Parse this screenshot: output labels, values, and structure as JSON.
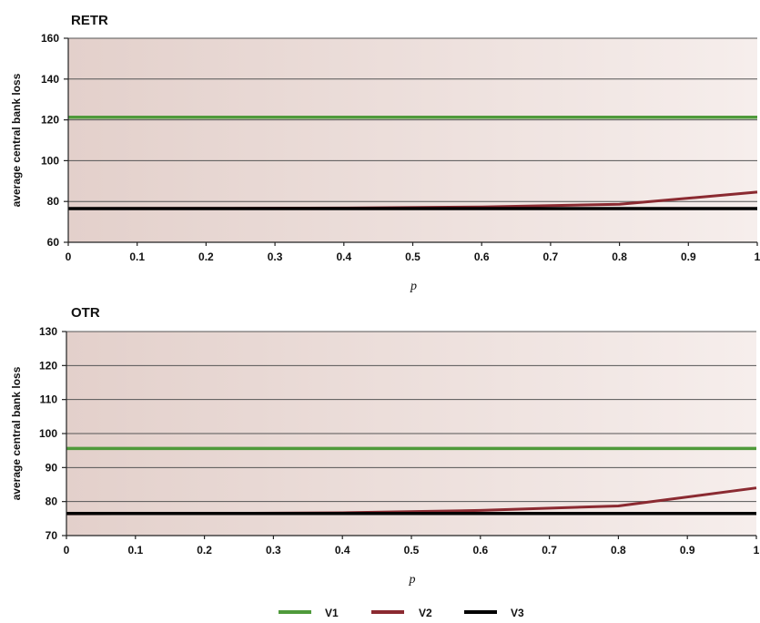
{
  "colors": {
    "V1": "#4f9a3b",
    "V2": "#8b2a31",
    "V3": "#000000",
    "plot_bg_left": "#e3d0cb",
    "plot_bg_right": "#f6eeec"
  },
  "legend": [
    {
      "name": "V1"
    },
    {
      "name": "V2"
    },
    {
      "name": "V3"
    }
  ],
  "chart_data": [
    {
      "type": "line",
      "title": "RETR",
      "xlabel": "p",
      "ylabel": "average central bank loss",
      "xlim": [
        0,
        1
      ],
      "ylim": [
        60,
        160
      ],
      "x_ticks": [
        0,
        0.1,
        0.2,
        0.3,
        0.4,
        0.5,
        0.6,
        0.7,
        0.8,
        0.9,
        1
      ],
      "x_tick_labels": [
        "0",
        "0.1",
        "0.2",
        "0.3",
        "0.4",
        "0.5",
        "0.6",
        "0.7",
        "0.8",
        "0.9",
        "1"
      ],
      "y_ticks": [
        60,
        80,
        100,
        120,
        140,
        160
      ],
      "y_tick_labels": [
        "60",
        "80",
        "100",
        "120",
        "140",
        "160"
      ],
      "grid": true,
      "legend_position": "bottom",
      "series": [
        {
          "name": "V1",
          "x": [
            0,
            1
          ],
          "y": [
            121.3,
            121.3
          ]
        },
        {
          "name": "V2",
          "x": [
            0,
            0.2,
            0.4,
            0.6,
            0.8,
            1
          ],
          "y": [
            76.5,
            76.6,
            76.8,
            77.3,
            78.6,
            84.6
          ]
        },
        {
          "name": "V3",
          "x": [
            0,
            1
          ],
          "y": [
            76.5,
            76.5
          ]
        }
      ]
    },
    {
      "type": "line",
      "title": "OTR",
      "xlabel": "p",
      "ylabel": "average central bank loss",
      "xlim": [
        0,
        1
      ],
      "ylim": [
        70,
        130
      ],
      "x_ticks": [
        0,
        0.1,
        0.2,
        0.3,
        0.4,
        0.5,
        0.6,
        0.7,
        0.8,
        0.9,
        1
      ],
      "x_tick_labels": [
        "0",
        "0.1",
        "0.2",
        "0.3",
        "0.4",
        "0.5",
        "0.6",
        "0.7",
        "0.8",
        "0.9",
        "1"
      ],
      "y_ticks": [
        70,
        80,
        90,
        100,
        110,
        120,
        130
      ],
      "y_tick_labels": [
        "70",
        "80",
        "90",
        "100",
        "110",
        "120",
        "130"
      ],
      "grid": true,
      "legend_position": "bottom",
      "series": [
        {
          "name": "V1",
          "x": [
            0,
            1
          ],
          "y": [
            95.6,
            95.6
          ]
        },
        {
          "name": "V2",
          "x": [
            0,
            0.2,
            0.4,
            0.6,
            0.8,
            1
          ],
          "y": [
            76.4,
            76.5,
            76.7,
            77.4,
            78.7,
            84.0
          ]
        },
        {
          "name": "V3",
          "x": [
            0,
            1
          ],
          "y": [
            76.5,
            76.5
          ]
        }
      ]
    }
  ]
}
